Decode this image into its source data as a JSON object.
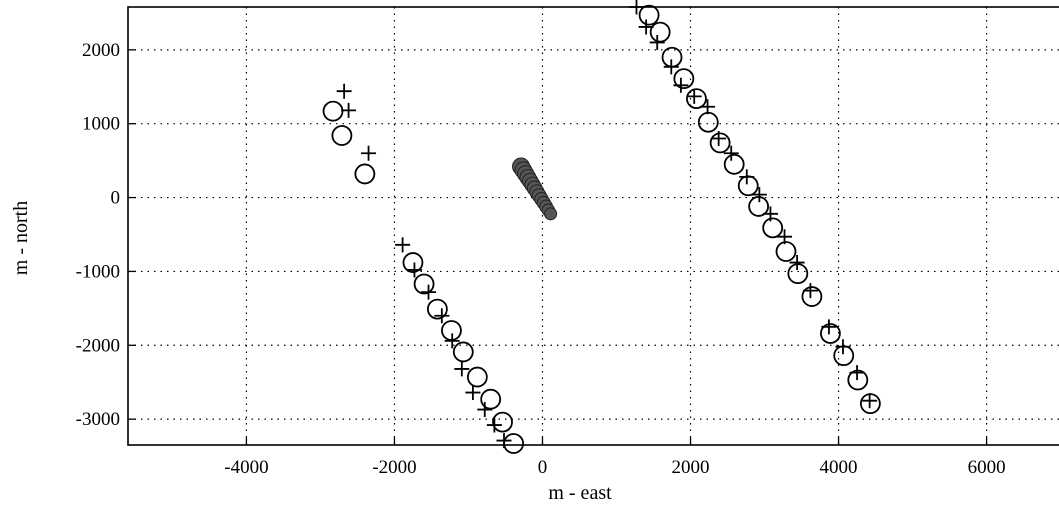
{
  "chart_data": {
    "type": "scatter",
    "title": "",
    "xlabel": "m - east",
    "ylabel": "m - north",
    "xlim": [
      -5600,
      7100
    ],
    "ylim": [
      -3350,
      2580
    ],
    "x_ticks": [
      -4000,
      -2000,
      0,
      2000,
      4000,
      6000
    ],
    "y_ticks": [
      -3000,
      -2000,
      -1000,
      0,
      1000,
      2000
    ],
    "x_tick_labels": [
      "-4000",
      "-2000",
      "0",
      "2000",
      "4000",
      "6000"
    ],
    "y_tick_labels": [
      "-3000",
      "-2000",
      "-1000",
      "0",
      "1000",
      "2000"
    ],
    "grid": true,
    "series": [
      {
        "marker": "o",
        "points": [
          [
            -2830,
            1170
          ],
          [
            -2710,
            840
          ],
          [
            -2400,
            320
          ],
          [
            -1750,
            -880
          ],
          [
            -1600,
            -1170
          ],
          [
            -1420,
            -1510
          ],
          [
            -1230,
            -1800
          ],
          [
            -1070,
            -2090
          ],
          [
            -880,
            -2430
          ],
          [
            -700,
            -2730
          ],
          [
            -540,
            -3040
          ],
          [
            -390,
            -3330
          ],
          [
            1440,
            2470
          ],
          [
            1590,
            2240
          ],
          [
            1750,
            1900
          ],
          [
            1910,
            1610
          ],
          [
            2080,
            1340
          ],
          [
            2240,
            1020
          ],
          [
            2400,
            740
          ],
          [
            2590,
            450
          ],
          [
            2780,
            160
          ],
          [
            2920,
            -120
          ],
          [
            3110,
            -410
          ],
          [
            3290,
            -730
          ],
          [
            3450,
            -1030
          ],
          [
            3640,
            -1340
          ],
          [
            3890,
            -1840
          ],
          [
            4070,
            -2140
          ],
          [
            4260,
            -2470
          ],
          [
            4430,
            -2790
          ]
        ]
      },
      {
        "marker": "+",
        "points": [
          [
            -2680,
            1440
          ],
          [
            -2620,
            1180
          ],
          [
            -2350,
            600
          ],
          [
            -1890,
            -640
          ],
          [
            -1730,
            -980
          ],
          [
            -1540,
            -1280
          ],
          [
            -1360,
            -1600
          ],
          [
            -1220,
            -1940
          ],
          [
            -1090,
            -2320
          ],
          [
            -940,
            -2640
          ],
          [
            -780,
            -2870
          ],
          [
            -650,
            -3080
          ],
          [
            -520,
            -3290
          ],
          [
            1270,
            2580
          ],
          [
            1400,
            2310
          ],
          [
            1550,
            2100
          ],
          [
            1740,
            1770
          ],
          [
            1870,
            1520
          ],
          [
            2050,
            1370
          ],
          [
            2230,
            1230
          ],
          [
            2380,
            800
          ],
          [
            2550,
            600
          ],
          [
            2760,
            280
          ],
          [
            2930,
            40
          ],
          [
            3080,
            -220
          ],
          [
            3270,
            -530
          ],
          [
            3440,
            -880
          ],
          [
            3620,
            -1260
          ],
          [
            3870,
            -1750
          ],
          [
            4060,
            -2020
          ],
          [
            4250,
            -2370
          ],
          [
            4420,
            -2750
          ]
        ]
      }
    ],
    "central_cluster": {
      "x_range": [
        -290,
        110
      ],
      "y_range": [
        -220,
        420
      ]
    }
  }
}
